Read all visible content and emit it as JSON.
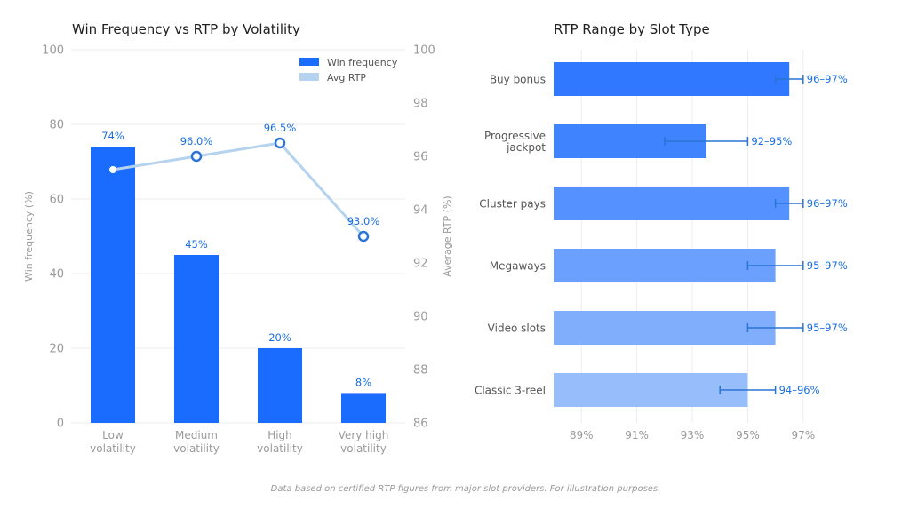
{
  "footnote": "Data based on certified RTP figures from major slot providers. For illustration purposes.",
  "chart_data": [
    {
      "type": "bar",
      "title": "Win Frequency vs RTP by Volatility",
      "categories": [
        [
          "Low",
          "volatility"
        ],
        [
          "Medium",
          "volatility"
        ],
        [
          "High",
          "volatility"
        ],
        [
          "Very high",
          "volatility"
        ]
      ],
      "series": [
        {
          "name": "Win frequency",
          "type": "bar",
          "axis": "left",
          "values": [
            74,
            45,
            20,
            8
          ],
          "labels": [
            "74%",
            "45%",
            "20%",
            "8%"
          ],
          "color": "#1a6cff"
        },
        {
          "name": "Avg RTP",
          "type": "line",
          "axis": "right",
          "values": [
            95.5,
            96.0,
            96.5,
            93.0
          ],
          "labels": [
            "",
            "96.0%",
            "96.5%",
            "93.0%"
          ],
          "color": "#b5d3ee",
          "marker_color": "#2a75d4"
        }
      ],
      "ylabel": "Win frequency (%)",
      "ylim": [
        0,
        100
      ],
      "yticks": [
        0,
        20,
        40,
        60,
        80,
        100
      ],
      "y2label": "Average RTP (%)",
      "y2lim": [
        86,
        100
      ],
      "y2ticks": [
        86,
        88,
        90,
        92,
        94,
        96,
        98,
        100
      ],
      "grid": true,
      "legend": "top-right"
    },
    {
      "type": "bar",
      "orientation": "horizontal",
      "title": "RTP Range by Slot Type",
      "categories": [
        [
          "Buy bonus"
        ],
        [
          "Progressive",
          "jackpot"
        ],
        [
          "Cluster pays"
        ],
        [
          "Megaways"
        ],
        [
          "Video slots"
        ],
        [
          "Classic 3-reel"
        ]
      ],
      "values": [
        96.5,
        93.5,
        96.5,
        96.0,
        96.0,
        95.0
      ],
      "ranges": [
        [
          96,
          97
        ],
        [
          92,
          95
        ],
        [
          96,
          97
        ],
        [
          95,
          97
        ],
        [
          95,
          97
        ],
        [
          94,
          96
        ]
      ],
      "range_labels": [
        "96–97%",
        "92–95%",
        "96–97%",
        "95–97%",
        "95–97%",
        "94–96%"
      ],
      "bar_colors": [
        "#2f78ff",
        "#3f83ff",
        "#5592ff",
        "#6ba0ff",
        "#80adfc",
        "#98bdfb"
      ],
      "xlim": [
        88,
        98
      ],
      "xticks": [
        89,
        91,
        93,
        95,
        97
      ],
      "xtick_labels": [
        "89%",
        "91%",
        "93%",
        "95%",
        "97%"
      ],
      "grid": true
    }
  ]
}
